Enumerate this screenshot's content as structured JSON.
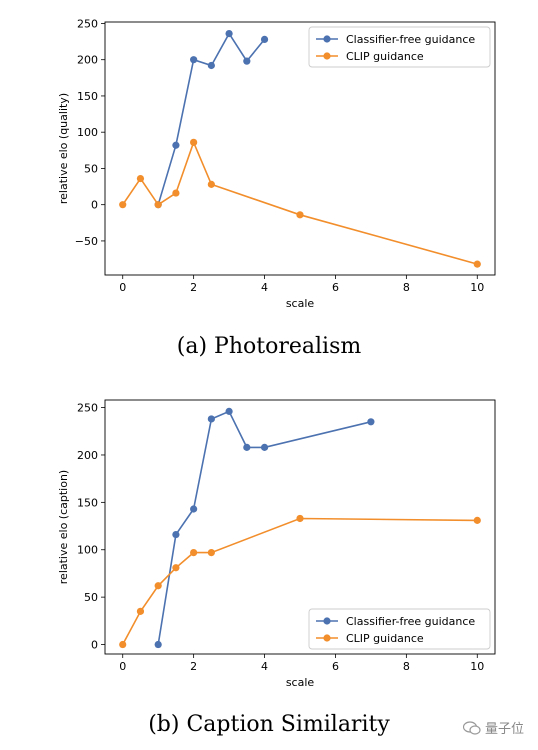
{
  "chart_data": [
    {
      "type": "line",
      "caption": "(a)  Photorealism",
      "xlabel": "scale",
      "ylabel": "relative elo (quality)",
      "xlim": [
        -0.5,
        10.5
      ],
      "ylim": [
        -97,
        252
      ],
      "xticks": [
        0,
        2,
        4,
        6,
        8,
        10
      ],
      "yticks": [
        -50,
        0,
        50,
        100,
        150,
        200,
        250
      ],
      "legend": "top-right",
      "grid": false,
      "series": [
        {
          "name": "Classifier-free guidance",
          "color": "#4c72b0",
          "x": [
            1,
            1.5,
            2,
            2.5,
            3,
            3.5,
            4
          ],
          "y": [
            0,
            82,
            200,
            192,
            236,
            198,
            228
          ]
        },
        {
          "name": "CLIP guidance",
          "color": "#f28e2b",
          "x": [
            0,
            0.5,
            1,
            1.5,
            2,
            2.5,
            5,
            10
          ],
          "y": [
            0,
            36,
            0,
            16,
            86,
            28,
            -14,
            -82
          ]
        }
      ]
    },
    {
      "type": "line",
      "caption": "(b)  Caption Similarity",
      "xlabel": "scale",
      "ylabel": "relative elo (caption)",
      "xlim": [
        -0.5,
        10.5
      ],
      "ylim": [
        -10,
        258
      ],
      "xticks": [
        0,
        2,
        4,
        6,
        8,
        10
      ],
      "yticks": [
        0,
        50,
        100,
        150,
        200,
        250
      ],
      "legend": "bottom-right",
      "grid": false,
      "series": [
        {
          "name": "Classifier-free guidance",
          "color": "#4c72b0",
          "x": [
            1,
            1.5,
            2,
            2.5,
            3,
            3.5,
            4,
            7
          ],
          "y": [
            0,
            116,
            143,
            238,
            246,
            208,
            208,
            235
          ]
        },
        {
          "name": "CLIP guidance",
          "color": "#f28e2b",
          "x": [
            0,
            0.5,
            1,
            1.5,
            2,
            2.5,
            5,
            10
          ],
          "y": [
            0,
            35,
            62,
            81,
            97,
            97,
            133,
            131
          ]
        }
      ]
    }
  ],
  "watermark": {
    "text": "量子位",
    "icon": "wechat-icon"
  }
}
